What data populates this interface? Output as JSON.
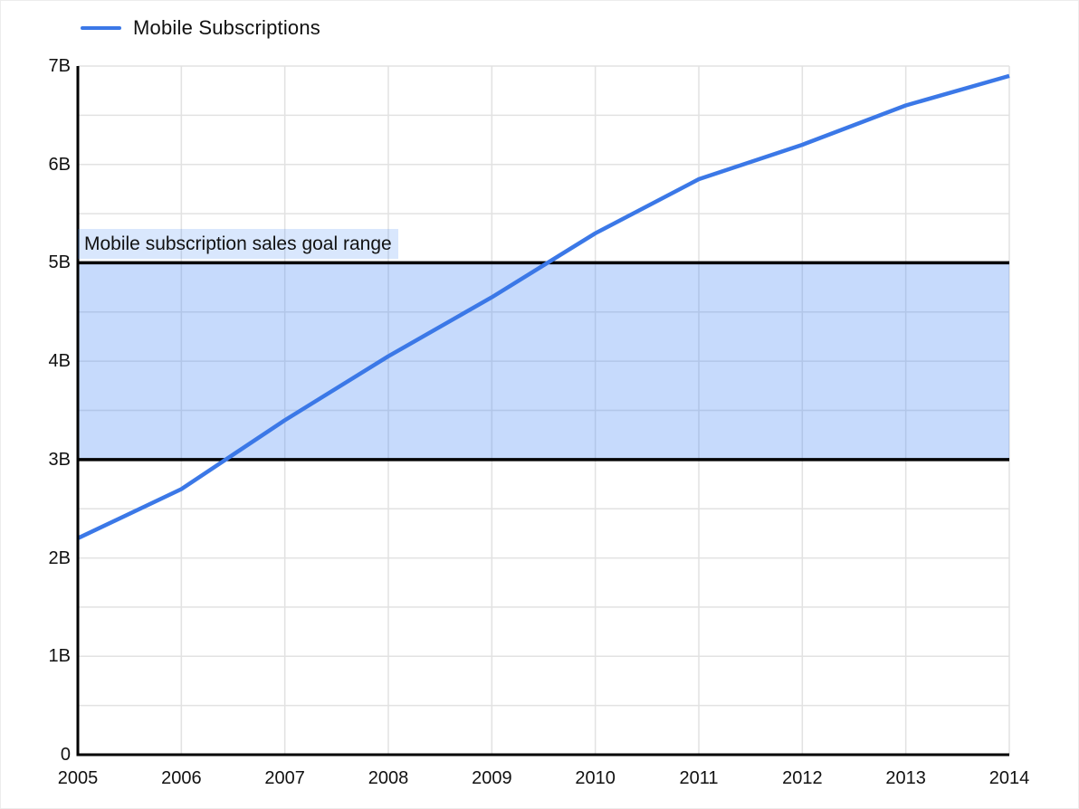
{
  "legend": {
    "label": "Mobile Subscriptions"
  },
  "chart_data": {
    "type": "line",
    "x": [
      2005,
      2006,
      2007,
      2008,
      2009,
      2010,
      2011,
      2012,
      2013,
      2014
    ],
    "xticks": [
      "2005",
      "2006",
      "2007",
      "2008",
      "2009",
      "2010",
      "2011",
      "2012",
      "2013",
      "2014"
    ],
    "series": [
      {
        "name": "Mobile Subscriptions",
        "color": "#3b78e7",
        "values": [
          2.2,
          2.7,
          3.4,
          4.05,
          4.65,
          5.3,
          5.85,
          6.2,
          6.6,
          6.9
        ]
      }
    ],
    "ylim": [
      0,
      7
    ],
    "ytick_values": [
      0,
      1,
      2,
      3,
      4,
      5,
      6,
      7
    ],
    "ytick_labels": [
      "0",
      "1B",
      "2B",
      "3B",
      "4B",
      "5B",
      "6B",
      "7B"
    ],
    "grid": {
      "horizontal_step": 0.5,
      "vertical_step_years": 1,
      "color": "#e2e2e2",
      "axis_color": "#000000"
    },
    "band": {
      "from": 3,
      "to": 5,
      "label": "Mobile subscription sales goal range",
      "fill": "rgba(66,133,244,0.30)",
      "label_fill": "rgba(66,133,244,0.20)",
      "border_color": "#000000"
    }
  }
}
